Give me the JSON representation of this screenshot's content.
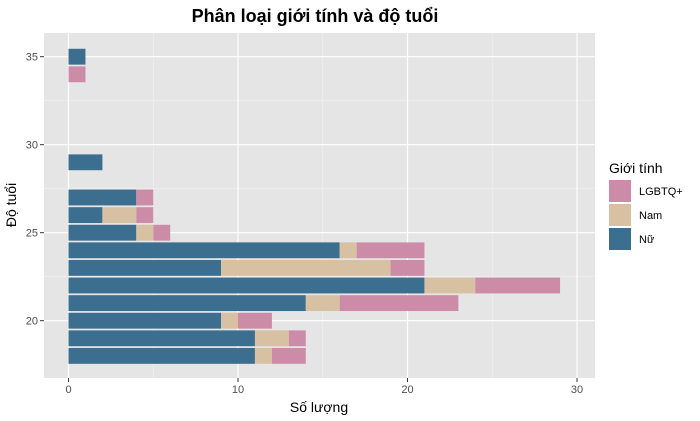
{
  "chart_data": {
    "type": "bar",
    "orientation": "horizontal",
    "stacked": true,
    "title": "Phân loại giới tính và độ tuổi",
    "xlabel": "Số lượng",
    "ylabel": "Độ tuổi",
    "xlim": [
      0,
      30
    ],
    "ylim": [
      17,
      36
    ],
    "x_ticks": [
      0,
      10,
      20,
      30
    ],
    "y_ticks": [
      20,
      25,
      30,
      35
    ],
    "grid": true,
    "legend": {
      "title": "Giới tính",
      "position": "right",
      "entries": [
        "LGBTQ+",
        "Nam",
        "Nữ"
      ]
    },
    "categories": [
      18,
      19,
      20,
      21,
      22,
      23,
      24,
      25,
      26,
      27,
      29,
      34,
      35
    ],
    "series": [
      {
        "name": "Nữ",
        "color": "#3c6e8f",
        "values": [
          11,
          11,
          9,
          14,
          21,
          9,
          16,
          4,
          2,
          4,
          2,
          0,
          1
        ]
      },
      {
        "name": "Nam",
        "color": "#d8c1a3",
        "values": [
          1,
          2,
          1,
          2,
          3,
          10,
          1,
          1,
          2,
          0,
          0,
          0,
          0
        ]
      },
      {
        "name": "LGBTQ+",
        "color": "#cc8ca8",
        "values": [
          2,
          1,
          2,
          7,
          5,
          2,
          4,
          1,
          1,
          1,
          0,
          1,
          0
        ]
      }
    ]
  }
}
